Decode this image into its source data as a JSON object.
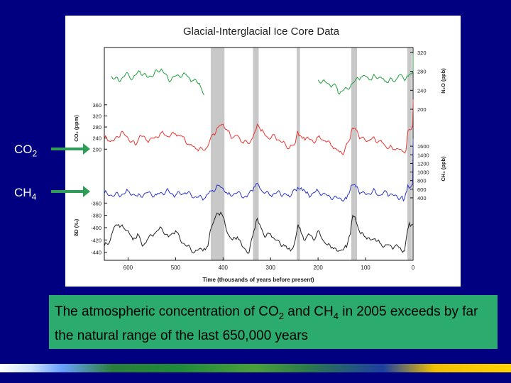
{
  "slide": {
    "label_co2_main": "CO",
    "label_co2_sub": "2",
    "label_ch4_main": "CH",
    "label_ch4_sub": "4",
    "caption_part1": "The atmospheric concentration of CO",
    "caption_sub1": "2",
    "caption_part2": " and CH",
    "caption_sub2": "4",
    "caption_part3": " in 2005 exceeds by far the natural range of the last 650,000 years"
  },
  "colors": {
    "background": "#000080",
    "n2o": "#1f9e3c",
    "co2": "#e8352f",
    "ch4": "#2a35c8",
    "dD": "#222222",
    "interglacial": "#c8c8c8",
    "caption_box": "#2bab6e",
    "arrow": "#2e9d57"
  },
  "chart_data": {
    "type": "line",
    "title": "Glacial-Interglacial Ice Core Data",
    "xlabel": "Time (thousands of years before present)",
    "xlim": [
      650,
      0
    ],
    "xticks": [
      600,
      500,
      400,
      300,
      200,
      100,
      0
    ],
    "interglacial_bands_kyr": [
      [
        426,
        397
      ],
      [
        337,
        325
      ],
      [
        245,
        238
      ],
      [
        130,
        118
      ],
      [
        12,
        3
      ]
    ],
    "series": [
      {
        "name": "N2O",
        "axis_label": "N₂O (ppb)",
        "axis_side": "right",
        "ticks": [
          200,
          240,
          280,
          320
        ],
        "ylim": [
          200,
          320
        ],
        "values_kyr": [
          [
            635,
            270
          ],
          [
            620,
            260
          ],
          [
            605,
            275
          ],
          [
            590,
            265
          ],
          [
            575,
            280
          ],
          [
            560,
            268
          ],
          [
            545,
            275
          ],
          [
            530,
            285
          ],
          [
            515,
            262
          ],
          [
            500,
            270
          ],
          [
            480,
            275
          ],
          [
            465,
            260
          ],
          [
            450,
            255
          ],
          [
            440,
            230
          ],
          [
            200,
            262
          ],
          [
            185,
            258
          ],
          [
            170,
            250
          ],
          [
            160,
            245
          ],
          [
            155,
            232
          ],
          [
            110,
            268
          ],
          [
            100,
            270
          ],
          [
            90,
            262
          ],
          [
            80,
            270
          ],
          [
            70,
            268
          ],
          [
            60,
            260
          ],
          [
            50,
            262
          ],
          [
            40,
            258
          ],
          [
            30,
            272
          ],
          [
            20,
            265
          ],
          [
            10,
            270
          ],
          [
            5,
            275
          ],
          [
            0,
            280
          ],
          [
            0,
            318
          ]
        ]
      },
      {
        "name": "CO2",
        "axis_label": "CO₂ (ppm)",
        "axis_side": "left",
        "ticks": [
          200,
          240,
          280,
          320,
          360
        ],
        "ylim": [
          170,
          380
        ],
        "values_kyr": [
          [
            650,
            240
          ],
          [
            640,
            230
          ],
          [
            630,
            230
          ],
          [
            615,
            260
          ],
          [
            600,
            240
          ],
          [
            585,
            215
          ],
          [
            575,
            250
          ],
          [
            560,
            230
          ],
          [
            545,
            240
          ],
          [
            530,
            260
          ],
          [
            515,
            245
          ],
          [
            500,
            255
          ],
          [
            485,
            245
          ],
          [
            470,
            215
          ],
          [
            455,
            200
          ],
          [
            440,
            195
          ],
          [
            430,
            220
          ],
          [
            420,
            255
          ],
          [
            410,
            280
          ],
          [
            400,
            290
          ],
          [
            390,
            265
          ],
          [
            380,
            240
          ],
          [
            370,
            250
          ],
          [
            360,
            225
          ],
          [
            345,
            220
          ],
          [
            335,
            255
          ],
          [
            328,
            290
          ],
          [
            320,
            265
          ],
          [
            305,
            240
          ],
          [
            290,
            245
          ],
          [
            275,
            225
          ],
          [
            260,
            205
          ],
          [
            250,
            215
          ],
          [
            243,
            265
          ],
          [
            238,
            250
          ],
          [
            225,
            240
          ],
          [
            210,
            225
          ],
          [
            200,
            245
          ],
          [
            185,
            230
          ],
          [
            170,
            210
          ],
          [
            155,
            190
          ],
          [
            145,
            190
          ],
          [
            135,
            230
          ],
          [
            128,
            275
          ],
          [
            120,
            270
          ],
          [
            110,
            240
          ],
          [
            100,
            230
          ],
          [
            90,
            235
          ],
          [
            80,
            235
          ],
          [
            70,
            230
          ],
          [
            60,
            215
          ],
          [
            50,
            205
          ],
          [
            40,
            200
          ],
          [
            30,
            200
          ],
          [
            20,
            190
          ],
          [
            15,
            195
          ],
          [
            11,
            265
          ],
          [
            5,
            270
          ],
          [
            1,
            285
          ],
          [
            0,
            379
          ]
        ]
      },
      {
        "name": "CH4",
        "axis_label": "CH₄ (ppb)",
        "axis_side": "right",
        "ticks": [
          400,
          600,
          800,
          1000,
          1200,
          1400,
          1600
        ],
        "ylim": [
          350,
          1800
        ],
        "values_kyr": [
          [
            650,
            500
          ],
          [
            620,
            460
          ],
          [
            600,
            560
          ],
          [
            580,
            440
          ],
          [
            560,
            520
          ],
          [
            540,
            470
          ],
          [
            520,
            560
          ],
          [
            500,
            460
          ],
          [
            480,
            520
          ],
          [
            460,
            420
          ],
          [
            440,
            380
          ],
          [
            425,
            560
          ],
          [
            410,
            690
          ],
          [
            400,
            620
          ],
          [
            390,
            480
          ],
          [
            370,
            520
          ],
          [
            350,
            420
          ],
          [
            335,
            650
          ],
          [
            325,
            700
          ],
          [
            315,
            520
          ],
          [
            300,
            460
          ],
          [
            280,
            520
          ],
          [
            260,
            420
          ],
          [
            243,
            640
          ],
          [
            238,
            600
          ],
          [
            220,
            470
          ],
          [
            200,
            560
          ],
          [
            180,
            450
          ],
          [
            160,
            400
          ],
          [
            140,
            380
          ],
          [
            128,
            700
          ],
          [
            120,
            650
          ],
          [
            110,
            520
          ],
          [
            100,
            480
          ],
          [
            85,
            560
          ],
          [
            70,
            460
          ],
          [
            55,
            520
          ],
          [
            40,
            450
          ],
          [
            25,
            420
          ],
          [
            18,
            380
          ],
          [
            11,
            700
          ],
          [
            5,
            650
          ],
          [
            1,
            720
          ],
          [
            0,
            1774
          ]
        ]
      },
      {
        "name": "δD",
        "axis_label": "δD (‰)",
        "axis_side": "left",
        "ticks": [
          -360,
          -380,
          -400,
          -420,
          -440
        ],
        "ylim": [
          -445,
          -355
        ],
        "values_kyr": [
          [
            650,
            -430
          ],
          [
            640,
            -425
          ],
          [
            630,
            -400
          ],
          [
            620,
            -395
          ],
          [
            610,
            -400
          ],
          [
            600,
            -405
          ],
          [
            590,
            -420
          ],
          [
            580,
            -410
          ],
          [
            570,
            -430
          ],
          [
            560,
            -420
          ],
          [
            545,
            -410
          ],
          [
            530,
            -400
          ],
          [
            515,
            -415
          ],
          [
            500,
            -405
          ],
          [
            490,
            -420
          ],
          [
            475,
            -430
          ],
          [
            460,
            -440
          ],
          [
            445,
            -435
          ],
          [
            432,
            -430
          ],
          [
            425,
            -400
          ],
          [
            415,
            -380
          ],
          [
            405,
            -375
          ],
          [
            398,
            -385
          ],
          [
            390,
            -410
          ],
          [
            380,
            -420
          ],
          [
            370,
            -415
          ],
          [
            360,
            -430
          ],
          [
            345,
            -440
          ],
          [
            335,
            -405
          ],
          [
            328,
            -385
          ],
          [
            320,
            -400
          ],
          [
            310,
            -415
          ],
          [
            300,
            -410
          ],
          [
            290,
            -420
          ],
          [
            280,
            -425
          ],
          [
            270,
            -430
          ],
          [
            258,
            -438
          ],
          [
            248,
            -420
          ],
          [
            242,
            -395
          ],
          [
            238,
            -400
          ],
          [
            230,
            -420
          ],
          [
            220,
            -410
          ],
          [
            210,
            -420
          ],
          [
            200,
            -405
          ],
          [
            190,
            -420
          ],
          [
            180,
            -428
          ],
          [
            170,
            -432
          ],
          [
            160,
            -438
          ],
          [
            150,
            -436
          ],
          [
            140,
            -432
          ],
          [
            132,
            -410
          ],
          [
            127,
            -380
          ],
          [
            120,
            -390
          ],
          [
            110,
            -410
          ],
          [
            100,
            -415
          ],
          [
            90,
            -420
          ],
          [
            80,
            -418
          ],
          [
            70,
            -425
          ],
          [
            60,
            -430
          ],
          [
            50,
            -428
          ],
          [
            40,
            -432
          ],
          [
            30,
            -432
          ],
          [
            22,
            -440
          ],
          [
            18,
            -438
          ],
          [
            12,
            -405
          ],
          [
            8,
            -392
          ],
          [
            3,
            -395
          ],
          [
            0,
            -395
          ]
        ]
      }
    ]
  }
}
